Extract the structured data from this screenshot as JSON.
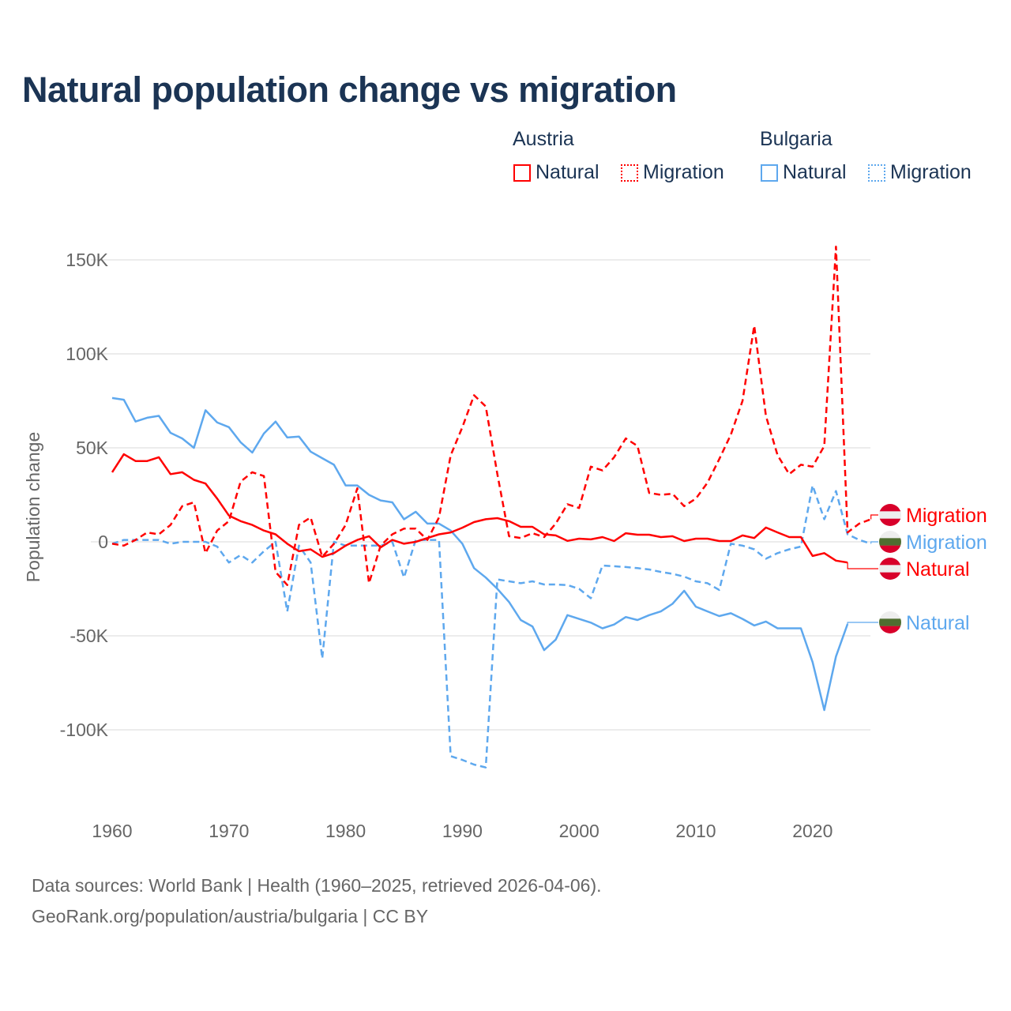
{
  "title": "Natural population change vs migration",
  "legend": {
    "groups": [
      {
        "name": "Austria",
        "items": [
          {
            "label": "Natural",
            "style": "solid"
          },
          {
            "label": "Migration",
            "style": "dotted"
          }
        ],
        "color": "#ff0000"
      },
      {
        "name": "Bulgaria",
        "items": [
          {
            "label": "Natural",
            "style": "solid"
          },
          {
            "label": "Migration",
            "style": "dotted"
          }
        ],
        "color": "#5ea8ee"
      }
    ]
  },
  "footer": {
    "line1": "Data sources: World Bank | Health (1960–2025, retrieved 2026-04-06).",
    "line2": "GeoRank.org/population/austria/bulgaria | CC BY"
  },
  "chart_data": {
    "type": "line",
    "title": "Natural population change vs migration",
    "xlabel": "",
    "ylabel": "Population change",
    "xlim": [
      1960,
      2025
    ],
    "ylim": [
      -130,
      165
    ],
    "y_unit": "thousands",
    "xticks": [
      1960,
      1970,
      1980,
      1990,
      2000,
      2010,
      2020
    ],
    "xtick_labels": [
      "1960",
      "1970",
      "1980",
      "1990",
      "2000",
      "2010",
      "2020"
    ],
    "yticks": [
      -100,
      -50,
      0,
      50,
      100,
      150
    ],
    "ytick_labels": [
      "-100K",
      "-50K",
      "0",
      "50K",
      "100K",
      "150K"
    ],
    "grid": true,
    "legend_position": "top-right",
    "start_year": 1960,
    "series": [
      {
        "name": "Austria Natural",
        "end_label": "Migration",
        "label": "Natural",
        "color": "#ff0000",
        "dash": false,
        "values": [
          37,
          46.6,
          43,
          43,
          45,
          36,
          37,
          33,
          31,
          23,
          14,
          11,
          9,
          6,
          4,
          -1,
          -5,
          -4,
          -8,
          -6,
          -2,
          1,
          3,
          -3,
          1,
          -1,
          0,
          2,
          4,
          5,
          7.5,
          10.5,
          12,
          12.6,
          11,
          8,
          8,
          4,
          3.4,
          0.5,
          1.7,
          1.3,
          2.5,
          0.4,
          4.6,
          3.8,
          3.8,
          2.5,
          3,
          0.4,
          1.7,
          1.7,
          0.4,
          0.4,
          3.4,
          2,
          7.6,
          5,
          2.5,
          2.5,
          -7.5,
          -6,
          -10,
          -11
        ]
      },
      {
        "name": "Austria Migration",
        "label": "Migration",
        "color": "#ff0000",
        "dash": true,
        "values": [
          -1,
          -2,
          1,
          5,
          4,
          9,
          19,
          21,
          -6,
          6,
          11,
          32,
          37,
          35,
          -16,
          -23,
          9,
          13,
          -8,
          -1,
          9,
          28.5,
          -22,
          -2,
          4,
          7,
          7,
          1,
          13,
          46,
          61,
          78,
          72,
          36,
          3,
          2,
          4.6,
          2.5,
          9.7,
          20,
          18,
          40,
          38,
          45,
          55,
          51,
          26,
          25,
          25.6,
          19,
          23,
          31.5,
          44,
          57,
          75,
          115,
          67,
          46,
          36,
          41,
          40,
          51,
          157,
          5,
          9.7,
          12
        ]
      },
      {
        "name": "Bulgaria Natural",
        "label": "Natural",
        "color": "#5ea8ee",
        "dash": false,
        "values": [
          76.5,
          75.6,
          64,
          66,
          67,
          58,
          55,
          50,
          70,
          63.5,
          61,
          53,
          47.5,
          57.6,
          64,
          55.5,
          56,
          48,
          44.5,
          41,
          30,
          30,
          25,
          22,
          21,
          12,
          16,
          9.7,
          9.7,
          6,
          -1,
          -14,
          -19,
          -25,
          -32,
          -41.6,
          -45,
          -57.6,
          -52,
          -39,
          -41,
          -43,
          -46,
          -44,
          -40,
          -41.6,
          -39,
          -37,
          -33,
          -26,
          -34.5,
          -37,
          -39.5,
          -38,
          -41,
          -44.5,
          -42.4,
          -46,
          -46,
          -46,
          -64,
          -89.5,
          -61,
          -43.7
        ]
      },
      {
        "name": "Bulgaria Migration",
        "label": "Migration",
        "color": "#5ea8ee",
        "dash": true,
        "values": [
          -1,
          1,
          1,
          1,
          1,
          -1,
          0,
          0,
          0,
          -2.5,
          -11,
          -7,
          -11,
          -5,
          0,
          -37,
          -2,
          -11,
          -62,
          0,
          -2,
          -2,
          -2,
          -2,
          0,
          -19,
          1,
          1,
          1,
          -114,
          -116,
          -118.5,
          -120,
          -20,
          -21,
          -22,
          -21,
          -22.7,
          -22.7,
          -23,
          -25,
          -30,
          -12.6,
          -13,
          -13.4,
          -14,
          -14.7,
          -16,
          -17,
          -18.5,
          -21,
          -22,
          -25.6,
          -1,
          -2,
          -4,
          -9,
          -6,
          -4,
          -2.5,
          30,
          12,
          27,
          4,
          1,
          -1
        ]
      }
    ],
    "end_labels": [
      {
        "series": "Austria Migration",
        "text": "Migration",
        "value": 14,
        "flag": "austria"
      },
      {
        "series": "Bulgaria Migration",
        "text": "Migration",
        "value": 0,
        "flag": "bulgaria"
      },
      {
        "series": "Austria Natural",
        "text": "Natural",
        "value": -14,
        "flag": "austria"
      },
      {
        "series": "Bulgaria Natural",
        "text": "Natural",
        "value": -43.7,
        "flag": "bulgaria"
      }
    ]
  }
}
